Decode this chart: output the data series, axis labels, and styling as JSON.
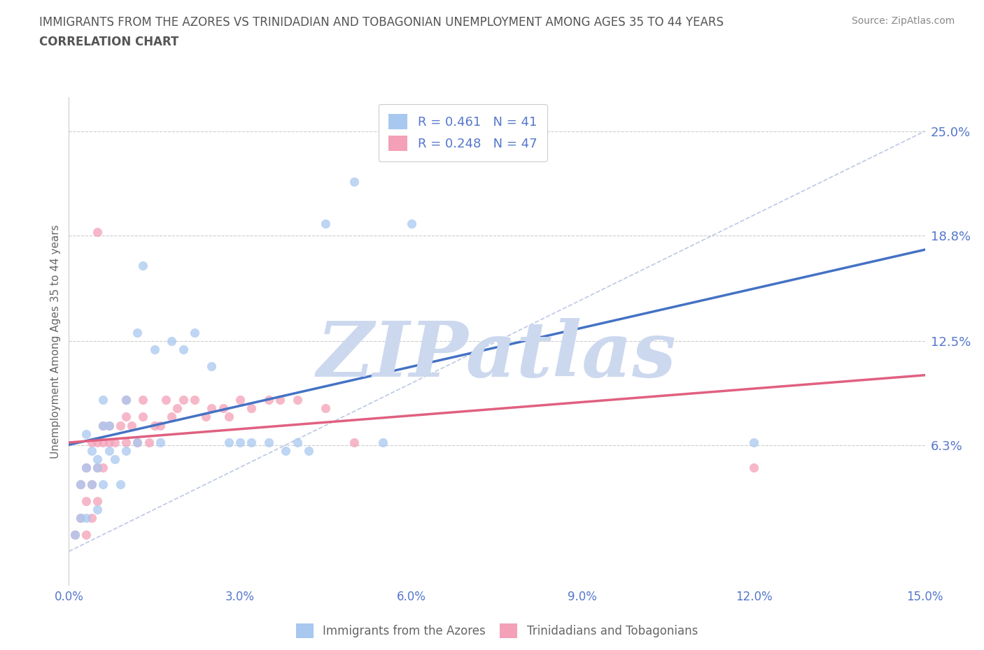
{
  "title_line1": "IMMIGRANTS FROM THE AZORES VS TRINIDADIAN AND TOBAGONIAN UNEMPLOYMENT AMONG AGES 35 TO 44 YEARS",
  "title_line2": "CORRELATION CHART",
  "source_text": "Source: ZipAtlas.com",
  "ylabel": "Unemployment Among Ages 35 to 44 years",
  "xlim": [
    0.0,
    0.15
  ],
  "ylim": [
    -0.02,
    0.27
  ],
  "xticks": [
    0.0,
    0.03,
    0.06,
    0.09,
    0.12,
    0.15
  ],
  "xticklabels": [
    "0.0%",
    "3.0%",
    "6.0%",
    "9.0%",
    "12.0%",
    "15.0%"
  ],
  "ytick_positions": [
    0.063,
    0.125,
    0.188,
    0.25
  ],
  "ytick_labels": [
    "6.3%",
    "12.5%",
    "18.8%",
    "25.0%"
  ],
  "hline_positions": [
    0.063,
    0.125,
    0.188,
    0.25
  ],
  "azores_color": "#a8c8f0",
  "trinidad_color": "#f4a0b8",
  "azores_line_color": "#4472c4",
  "trinidad_line_color": "#e06080",
  "legend_azores_label": "Immigrants from the Azores",
  "legend_trinidad_label": "Trinidadians and Tobagonians",
  "R_azores": "0.461",
  "N_azores": "41",
  "R_trinidad": "0.248",
  "N_trinidad": "47",
  "azores_line": [
    0.0,
    0.028,
    0.065,
    0.17
  ],
  "trinidad_line": [
    0.0,
    0.063,
    0.15,
    0.125
  ],
  "azores_scatter": [
    [
      0.001,
      0.01
    ],
    [
      0.002,
      0.02
    ],
    [
      0.002,
      0.04
    ],
    [
      0.003,
      0.02
    ],
    [
      0.003,
      0.05
    ],
    [
      0.003,
      0.07
    ],
    [
      0.004,
      0.04
    ],
    [
      0.004,
      0.06
    ],
    [
      0.005,
      0.025
    ],
    [
      0.005,
      0.05
    ],
    [
      0.005,
      0.055
    ],
    [
      0.006,
      0.04
    ],
    [
      0.006,
      0.075
    ],
    [
      0.006,
      0.09
    ],
    [
      0.007,
      0.06
    ],
    [
      0.007,
      0.075
    ],
    [
      0.008,
      0.055
    ],
    [
      0.009,
      0.04
    ],
    [
      0.01,
      0.06
    ],
    [
      0.01,
      0.09
    ],
    [
      0.012,
      0.065
    ],
    [
      0.012,
      0.13
    ],
    [
      0.013,
      0.17
    ],
    [
      0.015,
      0.12
    ],
    [
      0.016,
      0.065
    ],
    [
      0.018,
      0.125
    ],
    [
      0.02,
      0.12
    ],
    [
      0.022,
      0.13
    ],
    [
      0.025,
      0.11
    ],
    [
      0.028,
      0.065
    ],
    [
      0.03,
      0.065
    ],
    [
      0.032,
      0.065
    ],
    [
      0.035,
      0.065
    ],
    [
      0.038,
      0.06
    ],
    [
      0.04,
      0.065
    ],
    [
      0.042,
      0.06
    ],
    [
      0.045,
      0.195
    ],
    [
      0.05,
      0.22
    ],
    [
      0.055,
      0.065
    ],
    [
      0.06,
      0.195
    ],
    [
      0.12,
      0.065
    ]
  ],
  "trinidad_scatter": [
    [
      0.001,
      0.01
    ],
    [
      0.002,
      0.02
    ],
    [
      0.002,
      0.04
    ],
    [
      0.003,
      0.01
    ],
    [
      0.003,
      0.03
    ],
    [
      0.003,
      0.05
    ],
    [
      0.004,
      0.02
    ],
    [
      0.004,
      0.04
    ],
    [
      0.004,
      0.065
    ],
    [
      0.005,
      0.03
    ],
    [
      0.005,
      0.05
    ],
    [
      0.005,
      0.065
    ],
    [
      0.005,
      0.19
    ],
    [
      0.006,
      0.05
    ],
    [
      0.006,
      0.065
    ],
    [
      0.006,
      0.075
    ],
    [
      0.007,
      0.065
    ],
    [
      0.007,
      0.075
    ],
    [
      0.008,
      0.065
    ],
    [
      0.009,
      0.075
    ],
    [
      0.01,
      0.065
    ],
    [
      0.01,
      0.08
    ],
    [
      0.01,
      0.09
    ],
    [
      0.011,
      0.075
    ],
    [
      0.012,
      0.065
    ],
    [
      0.013,
      0.08
    ],
    [
      0.013,
      0.09
    ],
    [
      0.014,
      0.065
    ],
    [
      0.015,
      0.075
    ],
    [
      0.016,
      0.075
    ],
    [
      0.017,
      0.09
    ],
    [
      0.018,
      0.08
    ],
    [
      0.019,
      0.085
    ],
    [
      0.02,
      0.09
    ],
    [
      0.022,
      0.09
    ],
    [
      0.024,
      0.08
    ],
    [
      0.025,
      0.085
    ],
    [
      0.027,
      0.085
    ],
    [
      0.028,
      0.08
    ],
    [
      0.03,
      0.09
    ],
    [
      0.032,
      0.085
    ],
    [
      0.035,
      0.09
    ],
    [
      0.037,
      0.09
    ],
    [
      0.04,
      0.09
    ],
    [
      0.045,
      0.085
    ],
    [
      0.05,
      0.065
    ],
    [
      0.12,
      0.05
    ]
  ],
  "watermark_text": "ZIPatlas",
  "watermark_color": "#ccd8ee",
  "background_color": "#ffffff",
  "title_color": "#555555",
  "axis_label_color": "#666666",
  "tick_label_color": "#5577cc",
  "grid_color": "#cccccc"
}
